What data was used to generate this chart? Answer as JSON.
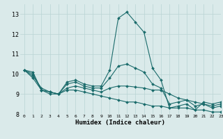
{
  "xlabel": "Humidex (Indice chaleur)",
  "xlim": [
    -0.5,
    23
  ],
  "ylim": [
    8,
    13.5
  ],
  "yticks": [
    8,
    9,
    10,
    11,
    12,
    13
  ],
  "xticks": [
    0,
    1,
    2,
    3,
    4,
    5,
    6,
    7,
    8,
    9,
    10,
    11,
    12,
    13,
    14,
    15,
    16,
    17,
    18,
    19,
    20,
    21,
    22,
    23
  ],
  "bg_color": "#daeaea",
  "grid_color": "#b8d4d4",
  "line_color": "#1a6b6b",
  "lines": [
    [
      10.2,
      10.1,
      9.2,
      9.1,
      9.0,
      9.6,
      9.7,
      9.5,
      9.4,
      9.4,
      10.2,
      12.8,
      13.1,
      12.6,
      12.1,
      10.3,
      9.7,
      8.3,
      8.4,
      8.5,
      8.2,
      8.6,
      8.5,
      8.6
    ],
    [
      10.2,
      9.8,
      9.2,
      9.0,
      9.0,
      9.2,
      9.2,
      9.1,
      9.0,
      8.9,
      8.8,
      8.7,
      8.6,
      8.6,
      8.5,
      8.4,
      8.4,
      8.3,
      8.3,
      8.3,
      8.2,
      8.2,
      8.1,
      8.1
    ],
    [
      10.2,
      9.9,
      9.3,
      9.1,
      9.0,
      9.3,
      9.4,
      9.3,
      9.2,
      9.1,
      9.3,
      9.4,
      9.4,
      9.35,
      9.3,
      9.2,
      9.2,
      9.0,
      8.8,
      8.7,
      8.6,
      8.5,
      8.4,
      8.5
    ],
    [
      10.2,
      10.0,
      9.2,
      9.1,
      9.0,
      9.5,
      9.6,
      9.4,
      9.3,
      9.3,
      9.8,
      10.4,
      10.5,
      10.3,
      10.1,
      9.5,
      9.3,
      8.5,
      8.6,
      8.7,
      8.4,
      8.5,
      8.3,
      8.4
    ]
  ]
}
